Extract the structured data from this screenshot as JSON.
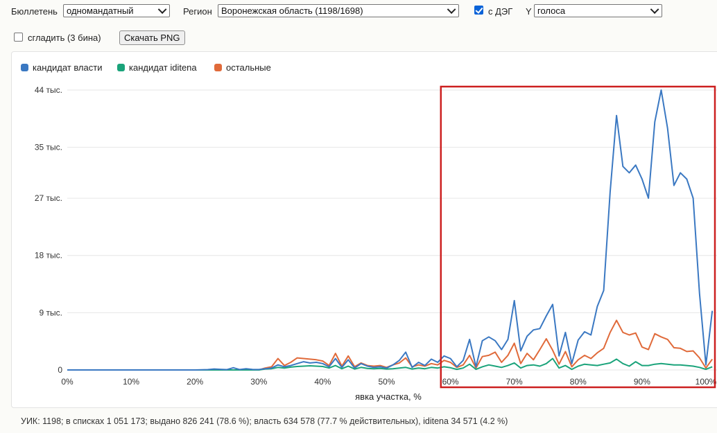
{
  "toolbar": {
    "ballot_label": "Бюллетень",
    "ballot_value": "одномандатный",
    "region_label": "Регион",
    "region_value": "Воронежская область (1198/1698)",
    "deg_label": "с ДЭГ",
    "deg_checked": true,
    "y_label": "Y",
    "y_value": "голоса",
    "smooth_label": "сгладить (3 бина)",
    "smooth_checked": false,
    "download_label": "Скачать PNG"
  },
  "footer": "УИК: 1198; в списках 1 051 173; выдано 826 241 (78.6 %); власть 634 578 (77.7 % действительных), iditena 34 571 (4.2 %)",
  "highlight_color": "#cc1f1f",
  "chart_data": {
    "type": "line",
    "xlabel": "явка участка, %",
    "ylabel": "",
    "xlim": [
      0,
      100
    ],
    "ylim": [
      0,
      44000
    ],
    "xticks": [
      0,
      10,
      20,
      30,
      40,
      50,
      60,
      70,
      80,
      90,
      100
    ],
    "xtick_labels": [
      "0%",
      "10%",
      "20%",
      "30%",
      "40%",
      "50%",
      "60%",
      "70%",
      "80%",
      "90%",
      "100%"
    ],
    "yticks": [
      0,
      9000,
      18000,
      27000,
      35000,
      44000
    ],
    "ytick_labels": [
      "0",
      "9 тыс.",
      "18 тыс.",
      "27 тыс.",
      "35 тыс.",
      "44 тыс."
    ],
    "grid": true,
    "legend_position": "top-left",
    "highlight_region": {
      "x_start": 58.5,
      "x_end": 100
    },
    "series": [
      {
        "name": "кандидат власти",
        "color": "#3a78c2",
        "points": [
          [
            0,
            0
          ],
          [
            20,
            0
          ],
          [
            22,
            50
          ],
          [
            23,
            150
          ],
          [
            24,
            100
          ],
          [
            25,
            50
          ],
          [
            26,
            350
          ],
          [
            27,
            60
          ],
          [
            28,
            180
          ],
          [
            29,
            80
          ],
          [
            30,
            60
          ],
          [
            31,
            200
          ],
          [
            32,
            300
          ],
          [
            33,
            800
          ],
          [
            34,
            500
          ],
          [
            35,
            700
          ],
          [
            36,
            1000
          ],
          [
            37,
            1300
          ],
          [
            38,
            1100
          ],
          [
            39,
            1200
          ],
          [
            40,
            1000
          ],
          [
            41,
            500
          ],
          [
            42,
            1800
          ],
          [
            43,
            400
          ],
          [
            44,
            1600
          ],
          [
            45,
            300
          ],
          [
            46,
            1000
          ],
          [
            47,
            600
          ],
          [
            48,
            400
          ],
          [
            49,
            500
          ],
          [
            50,
            300
          ],
          [
            51,
            800
          ],
          [
            52,
            1500
          ],
          [
            53,
            2800
          ],
          [
            54,
            400
          ],
          [
            55,
            1200
          ],
          [
            56,
            700
          ],
          [
            57,
            1700
          ],
          [
            58,
            1200
          ],
          [
            59,
            2200
          ],
          [
            60,
            1800
          ],
          [
            61,
            500
          ],
          [
            62,
            1500
          ],
          [
            63,
            4800
          ],
          [
            64,
            500
          ],
          [
            65,
            4600
          ],
          [
            66,
            5200
          ],
          [
            67,
            4600
          ],
          [
            68,
            3200
          ],
          [
            69,
            4800
          ],
          [
            70,
            10900
          ],
          [
            71,
            3000
          ],
          [
            72,
            5300
          ],
          [
            73,
            6300
          ],
          [
            74,
            6500
          ],
          [
            75,
            8500
          ],
          [
            76,
            10300
          ],
          [
            77,
            2200
          ],
          [
            78,
            5900
          ],
          [
            79,
            1000
          ],
          [
            80,
            4700
          ],
          [
            81,
            6000
          ],
          [
            82,
            5500
          ],
          [
            83,
            10000
          ],
          [
            84,
            12500
          ],
          [
            85,
            28000
          ],
          [
            86,
            40000
          ],
          [
            87,
            32000
          ],
          [
            88,
            31000
          ],
          [
            89,
            32200
          ],
          [
            90,
            30000
          ],
          [
            91,
            27000
          ],
          [
            92,
            39000
          ],
          [
            93,
            44000
          ],
          [
            94,
            38000
          ],
          [
            95,
            29000
          ],
          [
            96,
            31000
          ],
          [
            97,
            30000
          ],
          [
            98,
            27000
          ],
          [
            99,
            12000
          ],
          [
            100,
            800
          ],
          [
            101,
            9300
          ]
        ]
      },
      {
        "name": "кандидат iditena",
        "color": "#1aa37a",
        "points": [
          [
            0,
            0
          ],
          [
            30,
            0
          ],
          [
            31,
            150
          ],
          [
            32,
            200
          ],
          [
            33,
            400
          ],
          [
            34,
            300
          ],
          [
            35,
            450
          ],
          [
            36,
            550
          ],
          [
            37,
            600
          ],
          [
            38,
            650
          ],
          [
            39,
            600
          ],
          [
            40,
            550
          ],
          [
            41,
            300
          ],
          [
            42,
            700
          ],
          [
            43,
            200
          ],
          [
            44,
            600
          ],
          [
            45,
            150
          ],
          [
            46,
            400
          ],
          [
            47,
            250
          ],
          [
            48,
            200
          ],
          [
            49,
            250
          ],
          [
            50,
            150
          ],
          [
            51,
            200
          ],
          [
            52,
            300
          ],
          [
            53,
            400
          ],
          [
            54,
            150
          ],
          [
            55,
            300
          ],
          [
            56,
            200
          ],
          [
            57,
            400
          ],
          [
            58,
            300
          ],
          [
            59,
            500
          ],
          [
            60,
            350
          ],
          [
            61,
            100
          ],
          [
            62,
            300
          ],
          [
            63,
            900
          ],
          [
            64,
            100
          ],
          [
            65,
            500
          ],
          [
            66,
            800
          ],
          [
            67,
            600
          ],
          [
            68,
            400
          ],
          [
            69,
            700
          ],
          [
            70,
            1100
          ],
          [
            71,
            300
          ],
          [
            72,
            700
          ],
          [
            73,
            800
          ],
          [
            74,
            600
          ],
          [
            75,
            1000
          ],
          [
            76,
            1800
          ],
          [
            77,
            300
          ],
          [
            78,
            700
          ],
          [
            79,
            100
          ],
          [
            80,
            600
          ],
          [
            81,
            900
          ],
          [
            82,
            800
          ],
          [
            83,
            700
          ],
          [
            84,
            900
          ],
          [
            85,
            1100
          ],
          [
            86,
            1700
          ],
          [
            87,
            1000
          ],
          [
            88,
            600
          ],
          [
            89,
            1300
          ],
          [
            90,
            700
          ],
          [
            91,
            700
          ],
          [
            92,
            900
          ],
          [
            93,
            1000
          ],
          [
            94,
            900
          ],
          [
            95,
            800
          ],
          [
            96,
            800
          ],
          [
            97,
            700
          ],
          [
            98,
            600
          ],
          [
            99,
            400
          ],
          [
            100,
            100
          ],
          [
            101,
            500
          ]
        ]
      },
      {
        "name": "остальные",
        "color": "#e06a3a",
        "points": [
          [
            0,
            0
          ],
          [
            30,
            0
          ],
          [
            31,
            300
          ],
          [
            32,
            500
          ],
          [
            33,
            1800
          ],
          [
            34,
            700
          ],
          [
            35,
            1200
          ],
          [
            36,
            1900
          ],
          [
            37,
            1800
          ],
          [
            38,
            1700
          ],
          [
            39,
            1600
          ],
          [
            40,
            1400
          ],
          [
            41,
            700
          ],
          [
            42,
            2600
          ],
          [
            43,
            600
          ],
          [
            44,
            2200
          ],
          [
            45,
            500
          ],
          [
            46,
            1100
          ],
          [
            47,
            700
          ],
          [
            48,
            600
          ],
          [
            49,
            700
          ],
          [
            50,
            400
          ],
          [
            51,
            800
          ],
          [
            52,
            1100
          ],
          [
            53,
            1900
          ],
          [
            54,
            500
          ],
          [
            55,
            800
          ],
          [
            56,
            600
          ],
          [
            57,
            1000
          ],
          [
            58,
            800
          ],
          [
            59,
            1500
          ],
          [
            60,
            1200
          ],
          [
            61,
            400
          ],
          [
            62,
            800
          ],
          [
            63,
            2300
          ],
          [
            64,
            300
          ],
          [
            65,
            2100
          ],
          [
            66,
            2300
          ],
          [
            67,
            2800
          ],
          [
            68,
            1200
          ],
          [
            69,
            2300
          ],
          [
            70,
            4200
          ],
          [
            71,
            1000
          ],
          [
            72,
            2600
          ],
          [
            73,
            1600
          ],
          [
            74,
            3200
          ],
          [
            75,
            4900
          ],
          [
            76,
            3100
          ],
          [
            77,
            900
          ],
          [
            78,
            2900
          ],
          [
            79,
            500
          ],
          [
            80,
            1600
          ],
          [
            81,
            2300
          ],
          [
            82,
            1800
          ],
          [
            83,
            2700
          ],
          [
            84,
            3400
          ],
          [
            85,
            5900
          ],
          [
            86,
            7800
          ],
          [
            87,
            5900
          ],
          [
            88,
            5500
          ],
          [
            89,
            5800
          ],
          [
            90,
            3600
          ],
          [
            91,
            3200
          ],
          [
            92,
            5700
          ],
          [
            93,
            5200
          ],
          [
            94,
            4800
          ],
          [
            95,
            3500
          ],
          [
            96,
            3400
          ],
          [
            97,
            2900
          ],
          [
            98,
            3000
          ],
          [
            99,
            1900
          ],
          [
            100,
            300
          ],
          [
            101,
            1700
          ]
        ]
      }
    ]
  }
}
